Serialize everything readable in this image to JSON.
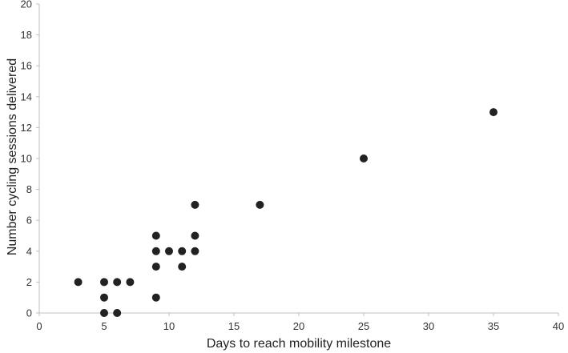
{
  "chart_data": {
    "type": "scatter",
    "title": "",
    "xlabel": "Days to reach mobility milestone",
    "ylabel": "Number cycling sessions delivered",
    "xlim": [
      0,
      40
    ],
    "ylim": [
      0,
      20
    ],
    "xticks": [
      0,
      5,
      10,
      15,
      20,
      25,
      30,
      35,
      40
    ],
    "yticks": [
      0,
      2,
      4,
      6,
      8,
      10,
      12,
      14,
      16,
      18,
      20
    ],
    "grid": false,
    "legend": "none",
    "marker_color": "#222222",
    "axis_color": "#bfbfbf",
    "points": [
      {
        "x": 3,
        "y": 2
      },
      {
        "x": 5,
        "y": 0
      },
      {
        "x": 5,
        "y": 1
      },
      {
        "x": 5,
        "y": 2
      },
      {
        "x": 6,
        "y": 0
      },
      {
        "x": 6,
        "y": 2
      },
      {
        "x": 7,
        "y": 2
      },
      {
        "x": 9,
        "y": 1
      },
      {
        "x": 9,
        "y": 3
      },
      {
        "x": 9,
        "y": 4
      },
      {
        "x": 9,
        "y": 5
      },
      {
        "x": 10,
        "y": 4
      },
      {
        "x": 11,
        "y": 3
      },
      {
        "x": 11,
        "y": 4
      },
      {
        "x": 12,
        "y": 4
      },
      {
        "x": 12,
        "y": 5
      },
      {
        "x": 12,
        "y": 7
      },
      {
        "x": 17,
        "y": 7
      },
      {
        "x": 25,
        "y": 10
      },
      {
        "x": 35,
        "y": 13
      }
    ]
  }
}
